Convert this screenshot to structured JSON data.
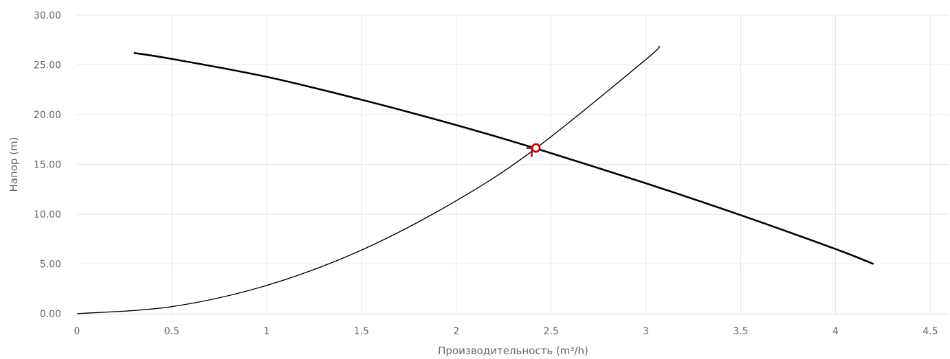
{
  "chart_data": {
    "type": "line",
    "xlabel": "Производительность (m³/h)",
    "ylabel": "Напор (m)",
    "xlim": [
      0,
      4.6
    ],
    "ylim": [
      0,
      30
    ],
    "xticks": [
      "0",
      "0.5",
      "1",
      "1.5",
      "2",
      "2.5",
      "3",
      "3.5",
      "4",
      "4.5"
    ],
    "yticks": [
      "0.00",
      "5.00",
      "10.00",
      "15.00",
      "20.00",
      "25.00",
      "30.00"
    ],
    "grid": true,
    "legend": "none",
    "series": [
      {
        "kind": "pump-curve",
        "color": "#000000",
        "x": [
          0.3,
          0.5,
          1.0,
          1.5,
          2.0,
          2.42,
          3.0,
          3.5,
          4.0,
          4.2
        ],
        "y": [
          26.2,
          25.6,
          23.8,
          21.5,
          18.95,
          16.6,
          13.1,
          9.9,
          6.5,
          5.0
        ]
      },
      {
        "kind": "system-curve",
        "color": "#000000",
        "x": [
          0.0,
          0.5,
          1.0,
          1.5,
          2.0,
          2.42,
          3.0,
          3.07
        ],
        "y": [
          0.0,
          0.71,
          2.84,
          6.39,
          11.35,
          16.62,
          25.54,
          26.9
        ]
      }
    ],
    "operating_point": {
      "x": 2.42,
      "y": 16.65,
      "color": "#d10000"
    }
  }
}
